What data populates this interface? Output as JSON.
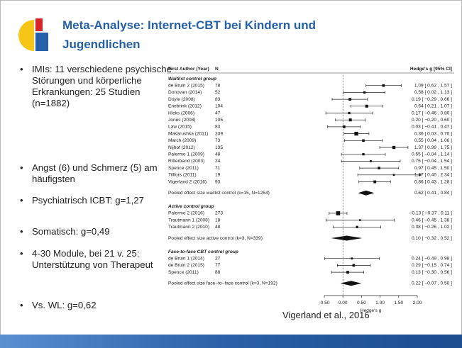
{
  "header": {
    "title_line1": "Meta-Analyse: Internet-CBT bei Kindern und",
    "title_line2": "Jugendlichen"
  },
  "bullets": [
    "IMIs: 11 verschiedene psychische Störungen und körperliche Erkrankungen: 25 Studien  (n=1882)",
    "Angst (6) und Schmerz (5) am häufigsten",
    "Psychiatrisch ICBT: g=1,27",
    "Somatisch: g=0,49",
    "4-30 Module, bei 21 v. 25: Unterstützung von Therapeut",
    "Vs. WL: g=0,62"
  ],
  "citation": "Vigerland et al., 2016",
  "chart_data": {
    "type": "forest",
    "columns": [
      "First Author (Year)",
      "N",
      "Hedge's g [95% CI]"
    ],
    "xlabel": "Hedge's g",
    "xlim": [
      -0.5,
      2.0
    ],
    "xticks": [
      {
        "value": -0.5,
        "label": "-0.50"
      },
      {
        "value": 0,
        "label": "0.00"
      },
      {
        "value": 0.5,
        "label": "0.50"
      },
      {
        "value": 1,
        "label": "1.00"
      },
      {
        "value": 1.5,
        "label": "1.50"
      },
      {
        "value": 2,
        "label": "2.00"
      }
    ],
    "groups": [
      {
        "name": "Waitlist control group",
        "studies": [
          {
            "author": "de Bruin 2 (2015)",
            "n": "78",
            "value": 1.09,
            "lower": 0.62,
            "upper": 1.57,
            "value_label": "1.09 [ 0.62 , 1.57 ]"
          },
          {
            "author": "Donovan (2014)",
            "n": "52",
            "value": 0.58,
            "lower": 0.02,
            "upper": 1.13,
            "value_label": "0.58 [ 0.02 , 1.13 ]"
          },
          {
            "author": "Doyle (2008)",
            "n": "83",
            "value": 0.19,
            "lower": -0.29,
            "upper": 0.66,
            "value_label": "0.19 [ −0.29 , 0.66 ]"
          },
          {
            "author": "Enebrink (2012)",
            "n": "104",
            "value": 0.64,
            "lower": 0.21,
            "upper": 1.07,
            "value_label": "0.64 [ 0.21 , 1.07 ]"
          },
          {
            "author": "Hicks (2006)",
            "n": "47",
            "value": 0.17,
            "lower": -0.46,
            "upper": 0.8,
            "value_label": "0.17 [ −0.46 , 0.80 ]"
          },
          {
            "author": "Jones (2008)",
            "n": "105",
            "value": 0.2,
            "lower": -0.2,
            "upper": 0.6,
            "value_label": "0.20 [ −0.20 , 0.60 ]"
          },
          {
            "author": "Law (2015)",
            "n": "83",
            "value": 0.03,
            "lower": -0.41,
            "upper": 0.47,
            "value_label": "0.03 [ −0.41 , 0.47 ]"
          },
          {
            "author": "Makarushka (2011)",
            "n": "239",
            "value": 0.36,
            "lower": 0.03,
            "upper": 0.7,
            "value_label": "0.36 [ 0.03 , 0.70 ]"
          },
          {
            "author": "March (2009)",
            "n": "73",
            "value": 0.55,
            "lower": 0.04,
            "upper": 1.06,
            "value_label": "0.55 [ 0.04 , 1.06 ]"
          },
          {
            "author": "Nijhof (2012)",
            "n": "135",
            "value": 1.37,
            "lower": 0.99,
            "upper": 1.75,
            "value_label": "1.37 [ 0.99 , 1.75 ]"
          },
          {
            "author": "Palermo 1 (2009)",
            "n": "48",
            "value": 0.55,
            "lower": -0.04,
            "upper": 1.14,
            "value_label": "0.55 [ −0.04 , 1.14 ]"
          },
          {
            "author": "Ritterband (2003)",
            "n": "24",
            "value": 0.75,
            "lower": -0.04,
            "upper": 1.54,
            "value_label": "0.75 [ −0.04 , 1.54 ]"
          },
          {
            "author": "Spence (2011)",
            "n": "71",
            "value": 0.97,
            "lower": 0.45,
            "upper": 1.5,
            "value_label": "0.97 [ 0.45 , 1.50 ]"
          },
          {
            "author": "Tillfors (2011)",
            "n": "19",
            "value": 1.37,
            "lower": 0.4,
            "upper": 2.34,
            "value_label": "1.37 [ 0.40 , 2.34 ]"
          },
          {
            "author": "Vigerland 2 (2016)",
            "n": "93",
            "value": 0.86,
            "lower": 0.43,
            "upper": 1.28,
            "value_label": "0.86 [ 0.43 , 1.28 ]"
          }
        ],
        "pooled": {
          "label": "Pooled effect size waitlist control (k=15, N=1254)",
          "value": 0.62,
          "lower": 0.41,
          "upper": 0.84,
          "value_label": "0.62 [ 0.41 , 0.84 ]"
        }
      },
      {
        "name": "Active control group",
        "studies": [
          {
            "author": "Palermo 2 (2016)",
            "n": "273",
            "value": -0.13,
            "lower": -0.37,
            "upper": 0.11,
            "value_label": "−0.13 [ −0.37 , 0.11 ]"
          },
          {
            "author": "Trautmann 1 (2008)",
            "n": "18",
            "value": 0.46,
            "lower": -0.45,
            "upper": 1.38,
            "value_label": "0.46 [ −0.45 , 1.38 ]"
          },
          {
            "author": "Trautmann 2 (2010)",
            "n": "48",
            "value": 0.38,
            "lower": -0.26,
            "upper": 1.02,
            "value_label": "0.38 [ −0.26 , 1.02 ]"
          }
        ],
        "pooled": {
          "label": "Pooled effect size active control (k=3, N=339)",
          "value": 0.1,
          "lower": -0.32,
          "upper": 0.52,
          "value_label": "0.10 [ −0.32 , 0.52 ]"
        }
      },
      {
        "name": "Face-to-face CBT control group",
        "studies": [
          {
            "author": "de Bruin 1 (2014)",
            "n": "27",
            "value": 0.24,
            "lower": -0.49,
            "upper": 0.98,
            "value_label": "0.24 [ −0.49 , 0.98 ]"
          },
          {
            "author": "de Bruin 2 (2015)",
            "n": "77",
            "value": 0.29,
            "lower": -0.15,
            "upper": 0.74,
            "value_label": "0.29 [ −0.15 , 0.74 ]"
          },
          {
            "author": "Spence (2011)",
            "n": "88",
            "value": 0.13,
            "lower": -0.3,
            "upper": 0.56,
            "value_label": "0.13 [ −0.30 , 0.56 ]"
          }
        ],
        "pooled": {
          "label": "Pooled effect size face−to−face control (k=3, N=192)",
          "value": 0.22,
          "lower": -0.07,
          "upper": 0.5,
          "value_label": "0.22 [ −0.07 , 0.50 ]"
        }
      }
    ]
  }
}
